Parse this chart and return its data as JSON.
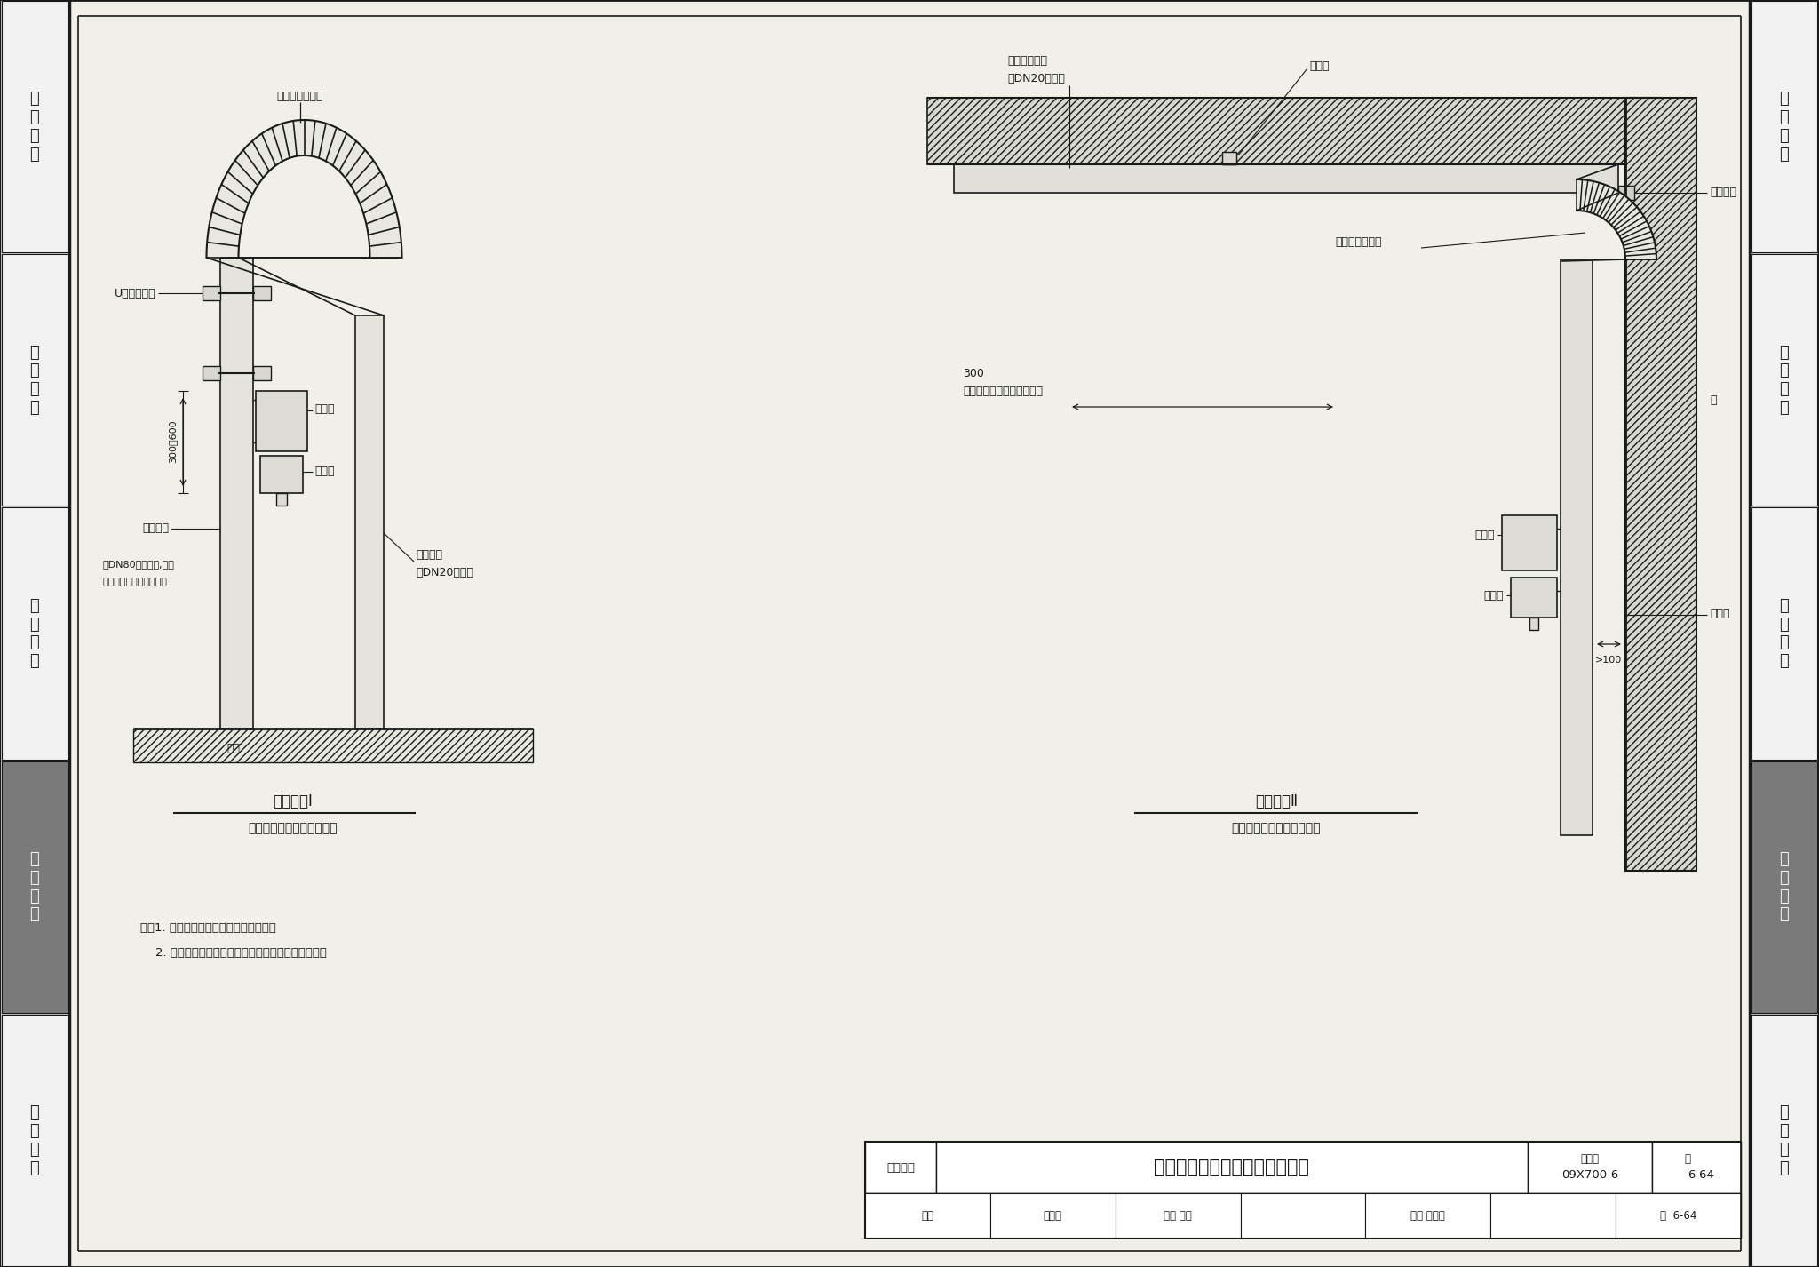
{
  "title": "防爆方型可燃气体探测器安装图",
  "subtitle_left1": "安装方式I",
  "subtitle_left2": "（可燃气体比空气重时用）",
  "subtitle_right1": "安装方式Ⅱ",
  "subtitle_right2": "（可燃气体比空气轻时用）",
  "note1": "注：1. 本图适用于变送器式方型探测器。",
  "note2": "    2. 两种方式均可采用墙上安装或利用钢管安装方式。",
  "sidebar_labels": [
    "机\n房\n工\n程",
    "供\n电\n电\n源",
    "缆\n线\n敷\n设",
    "设\n备\n安\n装",
    "防\n雷\n接\n地"
  ],
  "sidebar_bg": [
    "#f2f2f2",
    "#f2f2f2",
    "#f2f2f2",
    "#7a7a7a",
    "#f2f2f2"
  ],
  "sidebar_tc": [
    "#222222",
    "#222222",
    "#222222",
    "#f2f2f2",
    "#222222"
  ],
  "bg_color": "#c8c8c8",
  "paper_color": "#f0efe8",
  "line_color": "#1a1a1a",
  "hatch_color": "#555555",
  "footer_cat": "设备安装",
  "footer_title": "防爆方型可燃气体探测器安装图",
  "footer_label2": "图集号",
  "footer_code": "09X700-6",
  "footer_page_label": "页",
  "footer_page": "6-64",
  "footer_row2": "审核 段震寰  校对 李怡  设计 张路明  页"
}
